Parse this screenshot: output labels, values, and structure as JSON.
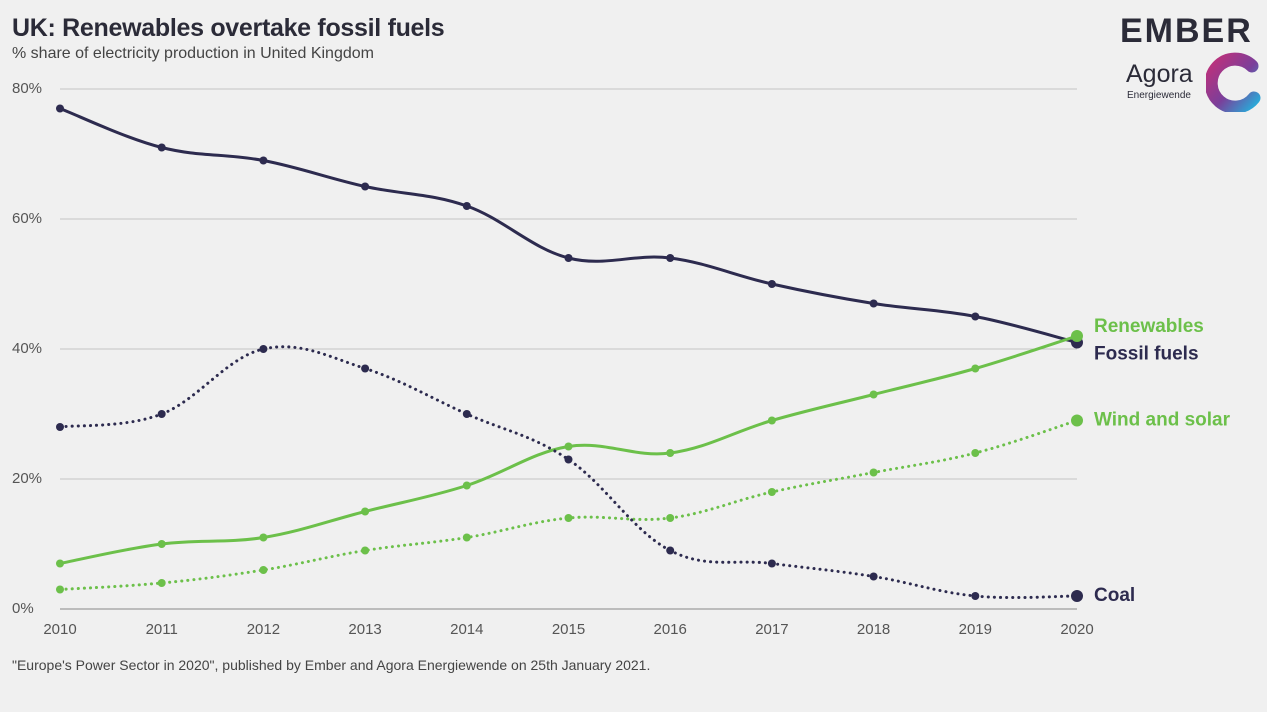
{
  "header": {
    "title": "UK: Renewables overtake fossil fuels",
    "subtitle": "% share of electricity production in United Kingdom"
  },
  "branding": {
    "ember": "EMBER",
    "agora": "Agora",
    "agora_sub": "Energiewende"
  },
  "footer": {
    "source": "\"Europe's Power Sector in 2020\", published by Ember and Agora Energiewende on 25th January 2021."
  },
  "colors": {
    "dark": "#2d2b4f",
    "green": "#6cc04a",
    "grid": "#c4c4c4",
    "background": "#f0f0f0"
  },
  "chart_data": {
    "type": "line",
    "x": [
      2010,
      2011,
      2012,
      2013,
      2014,
      2015,
      2016,
      2017,
      2018,
      2019,
      2020
    ],
    "ylim": [
      0,
      80
    ],
    "yticks": [
      0,
      20,
      40,
      60,
      80
    ],
    "ytick_labels": [
      "0%",
      "20%",
      "40%",
      "60%",
      "80%"
    ],
    "xtick_labels": [
      "2010",
      "2011",
      "2012",
      "2013",
      "2014",
      "2015",
      "2016",
      "2017",
      "2018",
      "2019",
      "2020"
    ],
    "grid": true,
    "legend": "end-of-line labels",
    "series": [
      {
        "name": "Fossil fuels",
        "style": "solid",
        "color": "#2d2b4f",
        "values": [
          77,
          71,
          69,
          65,
          62,
          54,
          54,
          50,
          47,
          45,
          41
        ]
      },
      {
        "name": "Renewables",
        "style": "solid",
        "color": "#6cc04a",
        "values": [
          7,
          10,
          11,
          15,
          19,
          25,
          24,
          29,
          33,
          37,
          42
        ]
      },
      {
        "name": "Wind and solar",
        "style": "dotted",
        "color": "#6cc04a",
        "values": [
          3,
          4,
          6,
          9,
          11,
          14,
          14,
          18,
          21,
          24,
          29
        ]
      },
      {
        "name": "Coal",
        "style": "dotted",
        "color": "#2d2b4f",
        "values": [
          28,
          30,
          40,
          37,
          30,
          23,
          9,
          7,
          5,
          2,
          2
        ]
      }
    ]
  }
}
